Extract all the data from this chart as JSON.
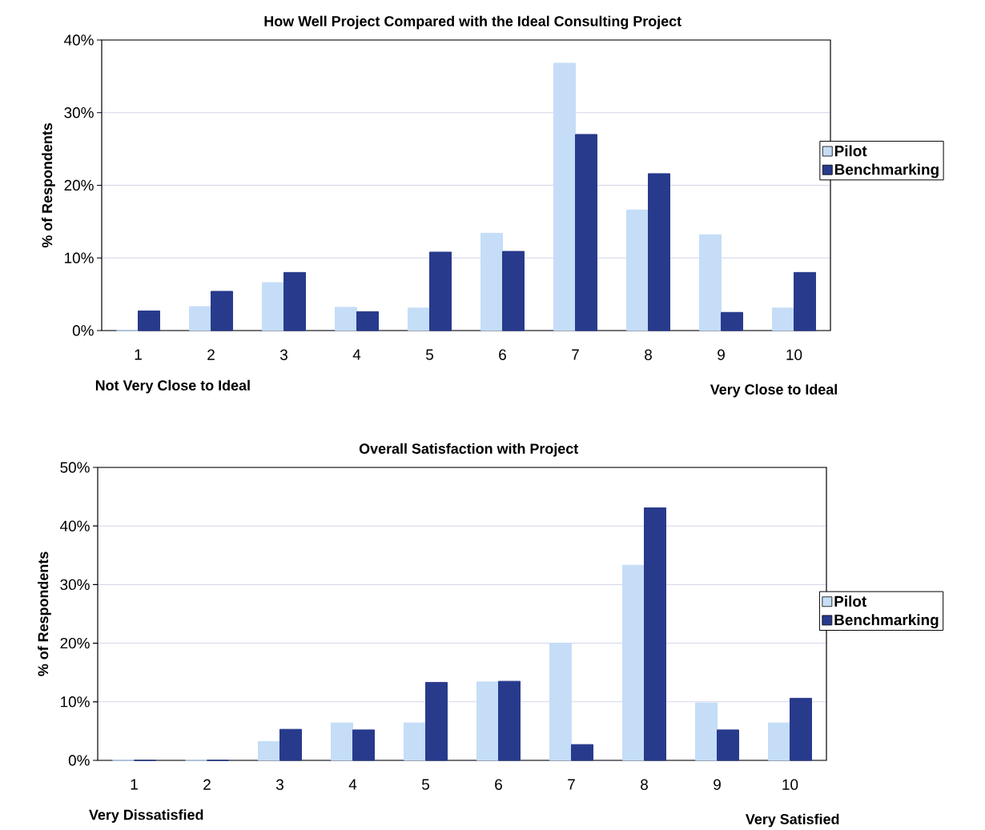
{
  "chart_data": [
    {
      "type": "bar",
      "title": "How Well Project Compared with the Ideal Consulting Project",
      "ylabel": "% of Respondents",
      "categories": [
        "1",
        "2",
        "3",
        "4",
        "5",
        "6",
        "7",
        "8",
        "9",
        "10"
      ],
      "series": [
        {
          "name": "Pilot",
          "color": "#c5ddf7",
          "values": [
            0,
            3.3,
            6.6,
            3.2,
            3.1,
            13.4,
            36.8,
            16.6,
            13.2,
            3.1
          ]
        },
        {
          "name": "Benchmarking",
          "color": "#283a8c",
          "values": [
            2.7,
            5.4,
            8.0,
            2.6,
            10.8,
            10.9,
            27.0,
            21.6,
            2.5,
            8.0
          ]
        }
      ],
      "ylim": [
        0,
        40
      ],
      "yticks": [
        {
          "value": 0,
          "label": "0%"
        },
        {
          "value": 10,
          "label": "10%"
        },
        {
          "value": 20,
          "label": "20%"
        },
        {
          "value": 30,
          "label": "30%"
        },
        {
          "value": 40,
          "label": "40%"
        }
      ],
      "grid": "y",
      "legend": "right",
      "annotations": [
        "Not Very Close to Ideal",
        "Very Close to Ideal"
      ]
    },
    {
      "type": "bar",
      "title": "Overall Satisfaction with Project",
      "ylabel": "% of Respondents",
      "categories": [
        "1",
        "2",
        "3",
        "4",
        "5",
        "6",
        "7",
        "8",
        "9",
        "10"
      ],
      "series": [
        {
          "name": "Pilot",
          "color": "#c5ddf7",
          "values": [
            0,
            0,
            3.2,
            6.4,
            6.4,
            13.4,
            20.0,
            33.3,
            9.8,
            6.4
          ]
        },
        {
          "name": "Benchmarking",
          "color": "#283a8c",
          "values": [
            0,
            0,
            5.3,
            5.2,
            13.3,
            13.5,
            2.7,
            43.1,
            5.2,
            10.6
          ]
        }
      ],
      "ylim": [
        0,
        50
      ],
      "yticks": [
        {
          "value": 0,
          "label": "0%"
        },
        {
          "value": 10,
          "label": "10%"
        },
        {
          "value": 20,
          "label": "20%"
        },
        {
          "value": 30,
          "label": "30%"
        },
        {
          "value": 40,
          "label": "40%"
        },
        {
          "value": 50,
          "label": "50%"
        }
      ],
      "grid": "y",
      "legend": "right",
      "annotations": [
        "Very Dissatisfied",
        "Very Satisfied"
      ]
    }
  ]
}
